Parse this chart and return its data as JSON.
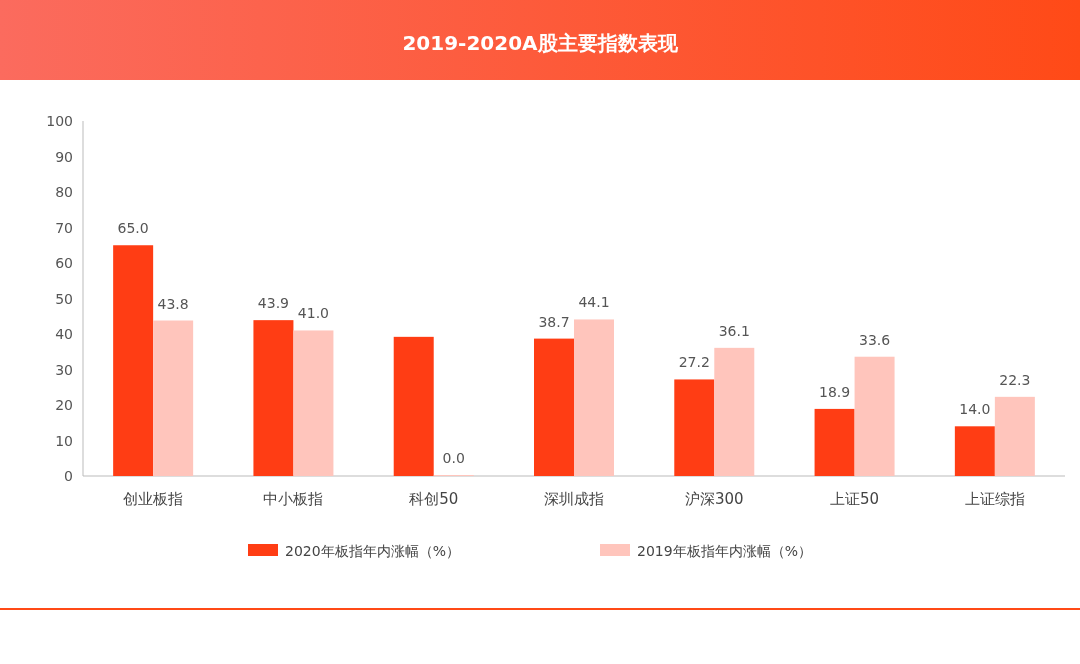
{
  "chart_data": {
    "type": "bar",
    "title": "2019-2020A股主要指数表现",
    "categories": [
      "创业板指",
      "中小板指",
      "科创50",
      "深圳成指",
      "沪深300",
      "上证50",
      "上证综指"
    ],
    "series": [
      {
        "name": "2020年板指年内涨幅（%）",
        "color": "#ff3d14",
        "values": [
          65.0,
          43.9,
          39.2,
          38.7,
          27.2,
          18.9,
          14.0
        ],
        "value_labels": [
          "65.0",
          "43.9",
          null,
          "38.7",
          "27.2",
          "18.9",
          "14.0"
        ]
      },
      {
        "name": "2019年板指年内涨幅（%）",
        "color": "#ffc5bc",
        "values": [
          43.8,
          41.0,
          0.0,
          44.1,
          36.1,
          33.6,
          22.3
        ],
        "value_labels": [
          "43.8",
          "41.0",
          "0.0",
          "44.1",
          "36.1",
          "33.6",
          "22.3"
        ]
      }
    ],
    "ylim": [
      0,
      100
    ],
    "yticks": [
      0,
      10,
      20,
      30,
      40,
      50,
      60,
      70,
      80,
      90,
      100
    ],
    "legend": "bottom",
    "grid": false
  }
}
